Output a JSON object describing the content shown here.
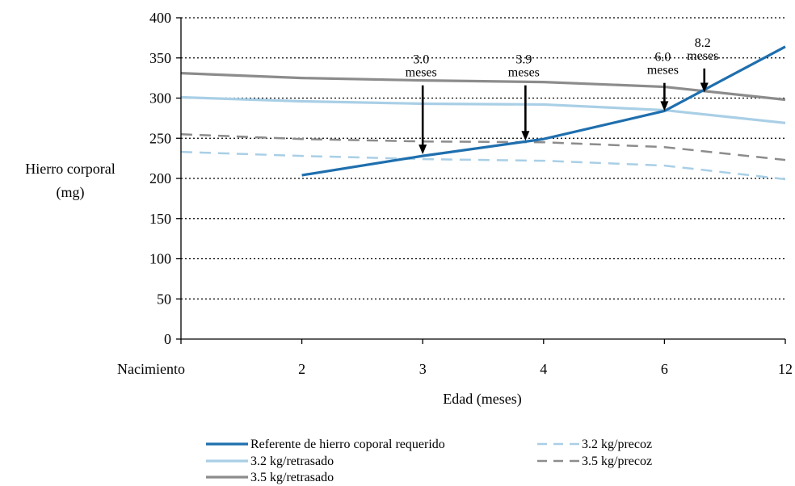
{
  "chart_data": {
    "type": "line",
    "xlabel": "Edad (meses)",
    "ylabel_lines": [
      "Hierro corporal",
      "(mg)"
    ],
    "categories": [
      "Nacimiento",
      "2",
      "3",
      "4",
      "6",
      "12"
    ],
    "ylim": [
      0,
      400
    ],
    "yticks": [
      0,
      50,
      100,
      150,
      200,
      250,
      300,
      350,
      400
    ],
    "grid": "horizontal-dotted",
    "legend_position": "bottom",
    "series": [
      {
        "name": "Referente de hierro coporal requerido",
        "color": "#1f6fae",
        "dash": "solid",
        "values": [
          null,
          204,
          228,
          249,
          284,
          364
        ]
      },
      {
        "name": "3.2 kg/retrasado",
        "color": "#a9cfe6",
        "dash": "solid",
        "values": [
          301,
          296,
          293,
          292,
          285,
          269
        ]
      },
      {
        "name": "3.5 kg/retrasado",
        "color": "#8c8c8c",
        "dash": "solid",
        "values": [
          331,
          325,
          322,
          320,
          314,
          298
        ]
      },
      {
        "name": "3.2 kg/precoz",
        "color": "#a9cfe6",
        "dash": "dashed",
        "values": [
          233,
          228,
          224,
          222,
          216,
          199
        ]
      },
      {
        "name": "3.5 kg/precoz",
        "color": "#8c8c8c",
        "dash": "dashed",
        "values": [
          255,
          249,
          246,
          245,
          239,
          223
        ]
      }
    ],
    "annotations": [
      {
        "value": "3.0",
        "unit": "meses",
        "x_index": 2.0,
        "label_y": 340,
        "target_y": 230
      },
      {
        "value": "3.9",
        "unit": "meses",
        "x_index": 2.85,
        "label_y": 340,
        "target_y": 247
      },
      {
        "value": "6.0",
        "unit": "meses",
        "x_index": 4.0,
        "label_y": 343,
        "target_y": 284
      },
      {
        "value": "8.2",
        "unit": "meses",
        "x_index": 4.33,
        "label_y": 361,
        "target_y": 307
      }
    ]
  }
}
